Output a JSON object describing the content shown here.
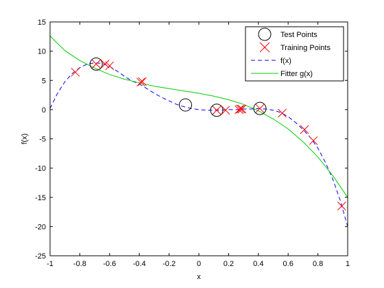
{
  "chart_data": {
    "type": "line",
    "title": "",
    "xlabel": "x",
    "ylabel": "f(x)",
    "xlim": [
      -1,
      1
    ],
    "ylim": [
      -25,
      15
    ],
    "xticks": [
      -1,
      -0.8,
      -0.6,
      -0.4,
      -0.2,
      0,
      0.2,
      0.4,
      0.6,
      0.8,
      1
    ],
    "xtick_labels": [
      "-1",
      "-0.8",
      "-0.6",
      "-0.4",
      "-0.2",
      "0",
      "0.2",
      "0.4",
      "0.6",
      "0.8",
      "1"
    ],
    "yticks": [
      -25,
      -20,
      -15,
      -10,
      -5,
      0,
      5,
      10,
      15
    ],
    "ytick_labels": [
      "-25",
      "-20",
      "-15",
      "-10",
      "-5",
      "0",
      "5",
      "10",
      "15"
    ],
    "grid": false,
    "legend_position": "top-right",
    "series": [
      {
        "name": "Test Points",
        "kind": "marker",
        "marker": "circle",
        "color": "#000000",
        "points": [
          [
            -0.69,
            7.8
          ],
          [
            -0.09,
            0.8
          ],
          [
            0.12,
            -0.1
          ],
          [
            0.41,
            0.2
          ]
        ]
      },
      {
        "name": "Training Points",
        "kind": "marker",
        "marker": "x",
        "color": "#ff0000",
        "points": [
          [
            -0.83,
            6.4
          ],
          [
            -0.69,
            7.8
          ],
          [
            -0.63,
            7.8
          ],
          [
            -0.6,
            7.5
          ],
          [
            -0.39,
            4.7
          ],
          [
            -0.38,
            4.8
          ],
          [
            0.12,
            -0.1
          ],
          [
            0.18,
            -0.1
          ],
          [
            0.27,
            0.0
          ],
          [
            0.28,
            0.1
          ],
          [
            0.29,
            0.1
          ],
          [
            0.41,
            0.2
          ],
          [
            0.56,
            -0.6
          ],
          [
            0.71,
            -3.4
          ],
          [
            0.77,
            -5.3
          ],
          [
            0.96,
            -16.5
          ]
        ]
      },
      {
        "name": "f(x)",
        "kind": "line",
        "dash": "dashed",
        "color": "#0000ff",
        "x": [
          -1,
          -0.95,
          -0.9,
          -0.85,
          -0.8,
          -0.75,
          -0.7,
          -0.65,
          -0.6,
          -0.55,
          -0.5,
          -0.45,
          -0.4,
          -0.35,
          -0.3,
          -0.25,
          -0.2,
          -0.15,
          -0.1,
          -0.05,
          0,
          0.05,
          0.1,
          0.15,
          0.2,
          0.25,
          0.3,
          0.35,
          0.4,
          0.45,
          0.5,
          0.55,
          0.6,
          0.65,
          0.7,
          0.75,
          0.8,
          0.85,
          0.9,
          0.95,
          1
        ],
        "y": [
          0.2,
          2.8,
          4.8,
          6.2,
          7.2,
          7.8,
          8.0,
          7.9,
          7.4,
          6.6,
          5.7,
          4.9,
          4.4,
          3.6,
          2.8,
          2.1,
          1.5,
          0.9,
          0.5,
          0.2,
          0.0,
          -0.1,
          -0.1,
          -0.1,
          0.0,
          0.0,
          0.1,
          0.1,
          0.2,
          0.1,
          -0.1,
          -0.5,
          -1.2,
          -2.2,
          -3.4,
          -4.8,
          -6.6,
          -9.0,
          -11.9,
          -15.5,
          -20.0
        ]
      },
      {
        "name": "Fitter g(x)",
        "kind": "line",
        "dash": "solid",
        "color": "#00cc00",
        "x": [
          -1,
          -0.9,
          -0.8,
          -0.7,
          -0.6,
          -0.5,
          -0.4,
          -0.3,
          -0.2,
          -0.1,
          0,
          0.1,
          0.2,
          0.3,
          0.4,
          0.5,
          0.6,
          0.7,
          0.8,
          0.9,
          1
        ],
        "y": [
          12.6,
          10.1,
          8.4,
          7.1,
          6.0,
          5.2,
          4.6,
          4.0,
          3.6,
          3.2,
          2.8,
          2.3,
          1.7,
          0.9,
          -0.2,
          -1.6,
          -3.3,
          -5.5,
          -8.1,
          -11.3,
          -15.0
        ]
      }
    ]
  }
}
